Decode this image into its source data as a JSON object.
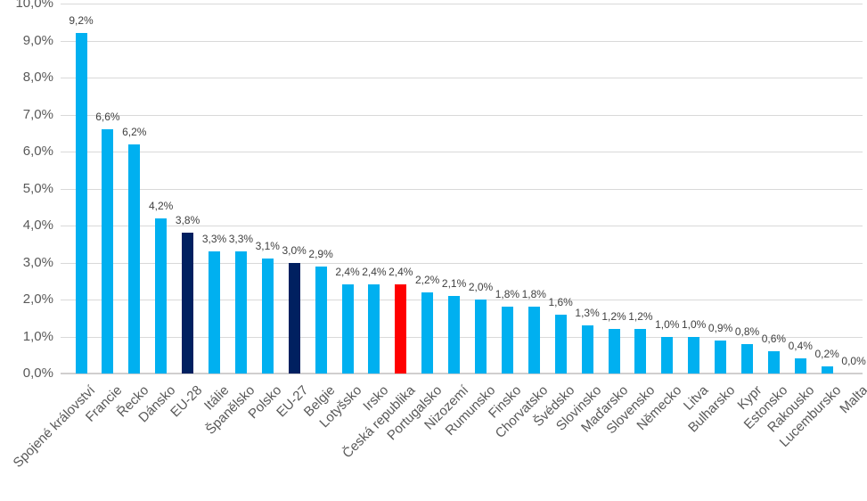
{
  "chart_data": {
    "type": "bar",
    "title": "",
    "xlabel": "",
    "ylabel": "",
    "categories": [
      "Spojené království",
      "Francie",
      "Řecko",
      "Dánsko",
      "EU-28",
      "Itálie",
      "Španělsko",
      "Polsko",
      "EU-27",
      "Belgie",
      "Lotyšsko",
      "Irsko",
      "Česká republika",
      "Portugalsko",
      "Nizozemí",
      "Rumunsko",
      "Finsko",
      "Chorvatsko",
      "Švédsko",
      "Slovinsko",
      "Maďarsko",
      "Slovensko",
      "Německo",
      "Litva",
      "Bulharsko",
      "Kypr",
      "Estonsko",
      "Rakousko",
      "Lucembursko",
      "Malta"
    ],
    "values": [
      9.2,
      6.6,
      6.2,
      4.2,
      3.8,
      3.3,
      3.3,
      3.1,
      3.0,
      2.9,
      2.4,
      2.4,
      2.4,
      2.2,
      2.1,
      2.0,
      1.8,
      1.8,
      1.6,
      1.3,
      1.2,
      1.2,
      1.0,
      1.0,
      0.9,
      0.8,
      0.6,
      0.4,
      0.2,
      0.0
    ],
    "data_labels": [
      "9,2%",
      "6,6%",
      "6,2%",
      "4,2%",
      "3,8%",
      "3,3%",
      "3,3%",
      "3,1%",
      "3,0%",
      "2,9%",
      "2,4%",
      "2,4%",
      "2,4%",
      "2,2%",
      "2,1%",
      "2,0%",
      "1,8%",
      "1,8%",
      "1,6%",
      "1,3%",
      "1,2%",
      "1,2%",
      "1,0%",
      "1,0%",
      "0,9%",
      "0,8%",
      "0,6%",
      "0,4%",
      "0,2%",
      "0,0%"
    ],
    "bar_colors": [
      "#00B0F0",
      "#00B0F0",
      "#00B0F0",
      "#00B0F0",
      "#002060",
      "#00B0F0",
      "#00B0F0",
      "#00B0F0",
      "#002060",
      "#00B0F0",
      "#00B0F0",
      "#00B0F0",
      "#FF0000",
      "#00B0F0",
      "#00B0F0",
      "#00B0F0",
      "#00B0F0",
      "#00B0F0",
      "#00B0F0",
      "#00B0F0",
      "#00B0F0",
      "#00B0F0",
      "#00B0F0",
      "#00B0F0",
      "#00B0F0",
      "#00B0F0",
      "#00B0F0",
      "#00B0F0",
      "#00B0F0",
      "#00B0F0"
    ],
    "ylim": [
      0,
      10
    ],
    "y_tick_labels": [
      "10,0%",
      "9,0%",
      "8,0%",
      "7,0%",
      "6,0%",
      "5,0%",
      "4,0%",
      "3,0%",
      "2,0%",
      "1,0%",
      "0,0%"
    ],
    "grid": true,
    "legend": "none",
    "colors": {
      "bar_default": "#00B0F0",
      "bar_eu_aggregate": "#002060",
      "bar_czech_highlight": "#FF0000",
      "gridline": "#D9D9D9",
      "axis_line": "#D0CECE",
      "axis_text": "#595959",
      "data_label_text": "#404040",
      "background": "#FFFFFF"
    }
  }
}
